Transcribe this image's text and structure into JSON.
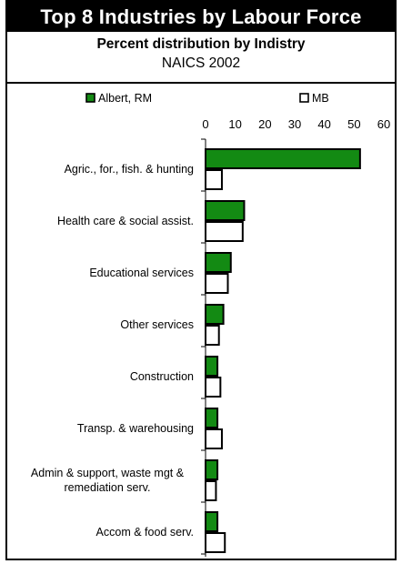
{
  "header": {
    "title": "Top 8 Industries by Labour Force",
    "subtitle": "Percent distribution by Indistry",
    "subtitle2": "NAICS 2002"
  },
  "colors": {
    "series1": "#138a13",
    "series2": "#ffffff",
    "stroke": "#000000"
  },
  "chart_data": {
    "type": "bar",
    "orientation": "horizontal",
    "categories": [
      "Agric., for., fish. & hunting",
      "Health care & social assist.",
      "Educational services",
      "Other services",
      "Construction",
      "Transp. & warehousing",
      "Admin & support, waste mgt & remediation serv.",
      "Accom & food serv."
    ],
    "category_lines": [
      [
        "Agric., for., fish. & hunting"
      ],
      [
        "Health care & social assist."
      ],
      [
        "Educational services"
      ],
      [
        "Other services"
      ],
      [
        "Construction"
      ],
      [
        "Transp. & warehousing"
      ],
      [
        "Admin & support, waste mgt &",
        "remediation serv."
      ],
      [
        "Accom & food serv."
      ]
    ],
    "series": [
      {
        "name": "Albert, RM",
        "values": [
          52,
          13,
          8.5,
          6,
          4,
          4,
          4,
          4
        ]
      },
      {
        "name": "MB",
        "values": [
          5.5,
          12.5,
          7.5,
          4.5,
          5,
          5.5,
          3.5,
          6.5
        ]
      }
    ],
    "xticks": [
      0,
      10,
      20,
      30,
      40,
      50,
      60
    ],
    "xlim": [
      0,
      60
    ],
    "legend_position": "top",
    "grid": false
  }
}
